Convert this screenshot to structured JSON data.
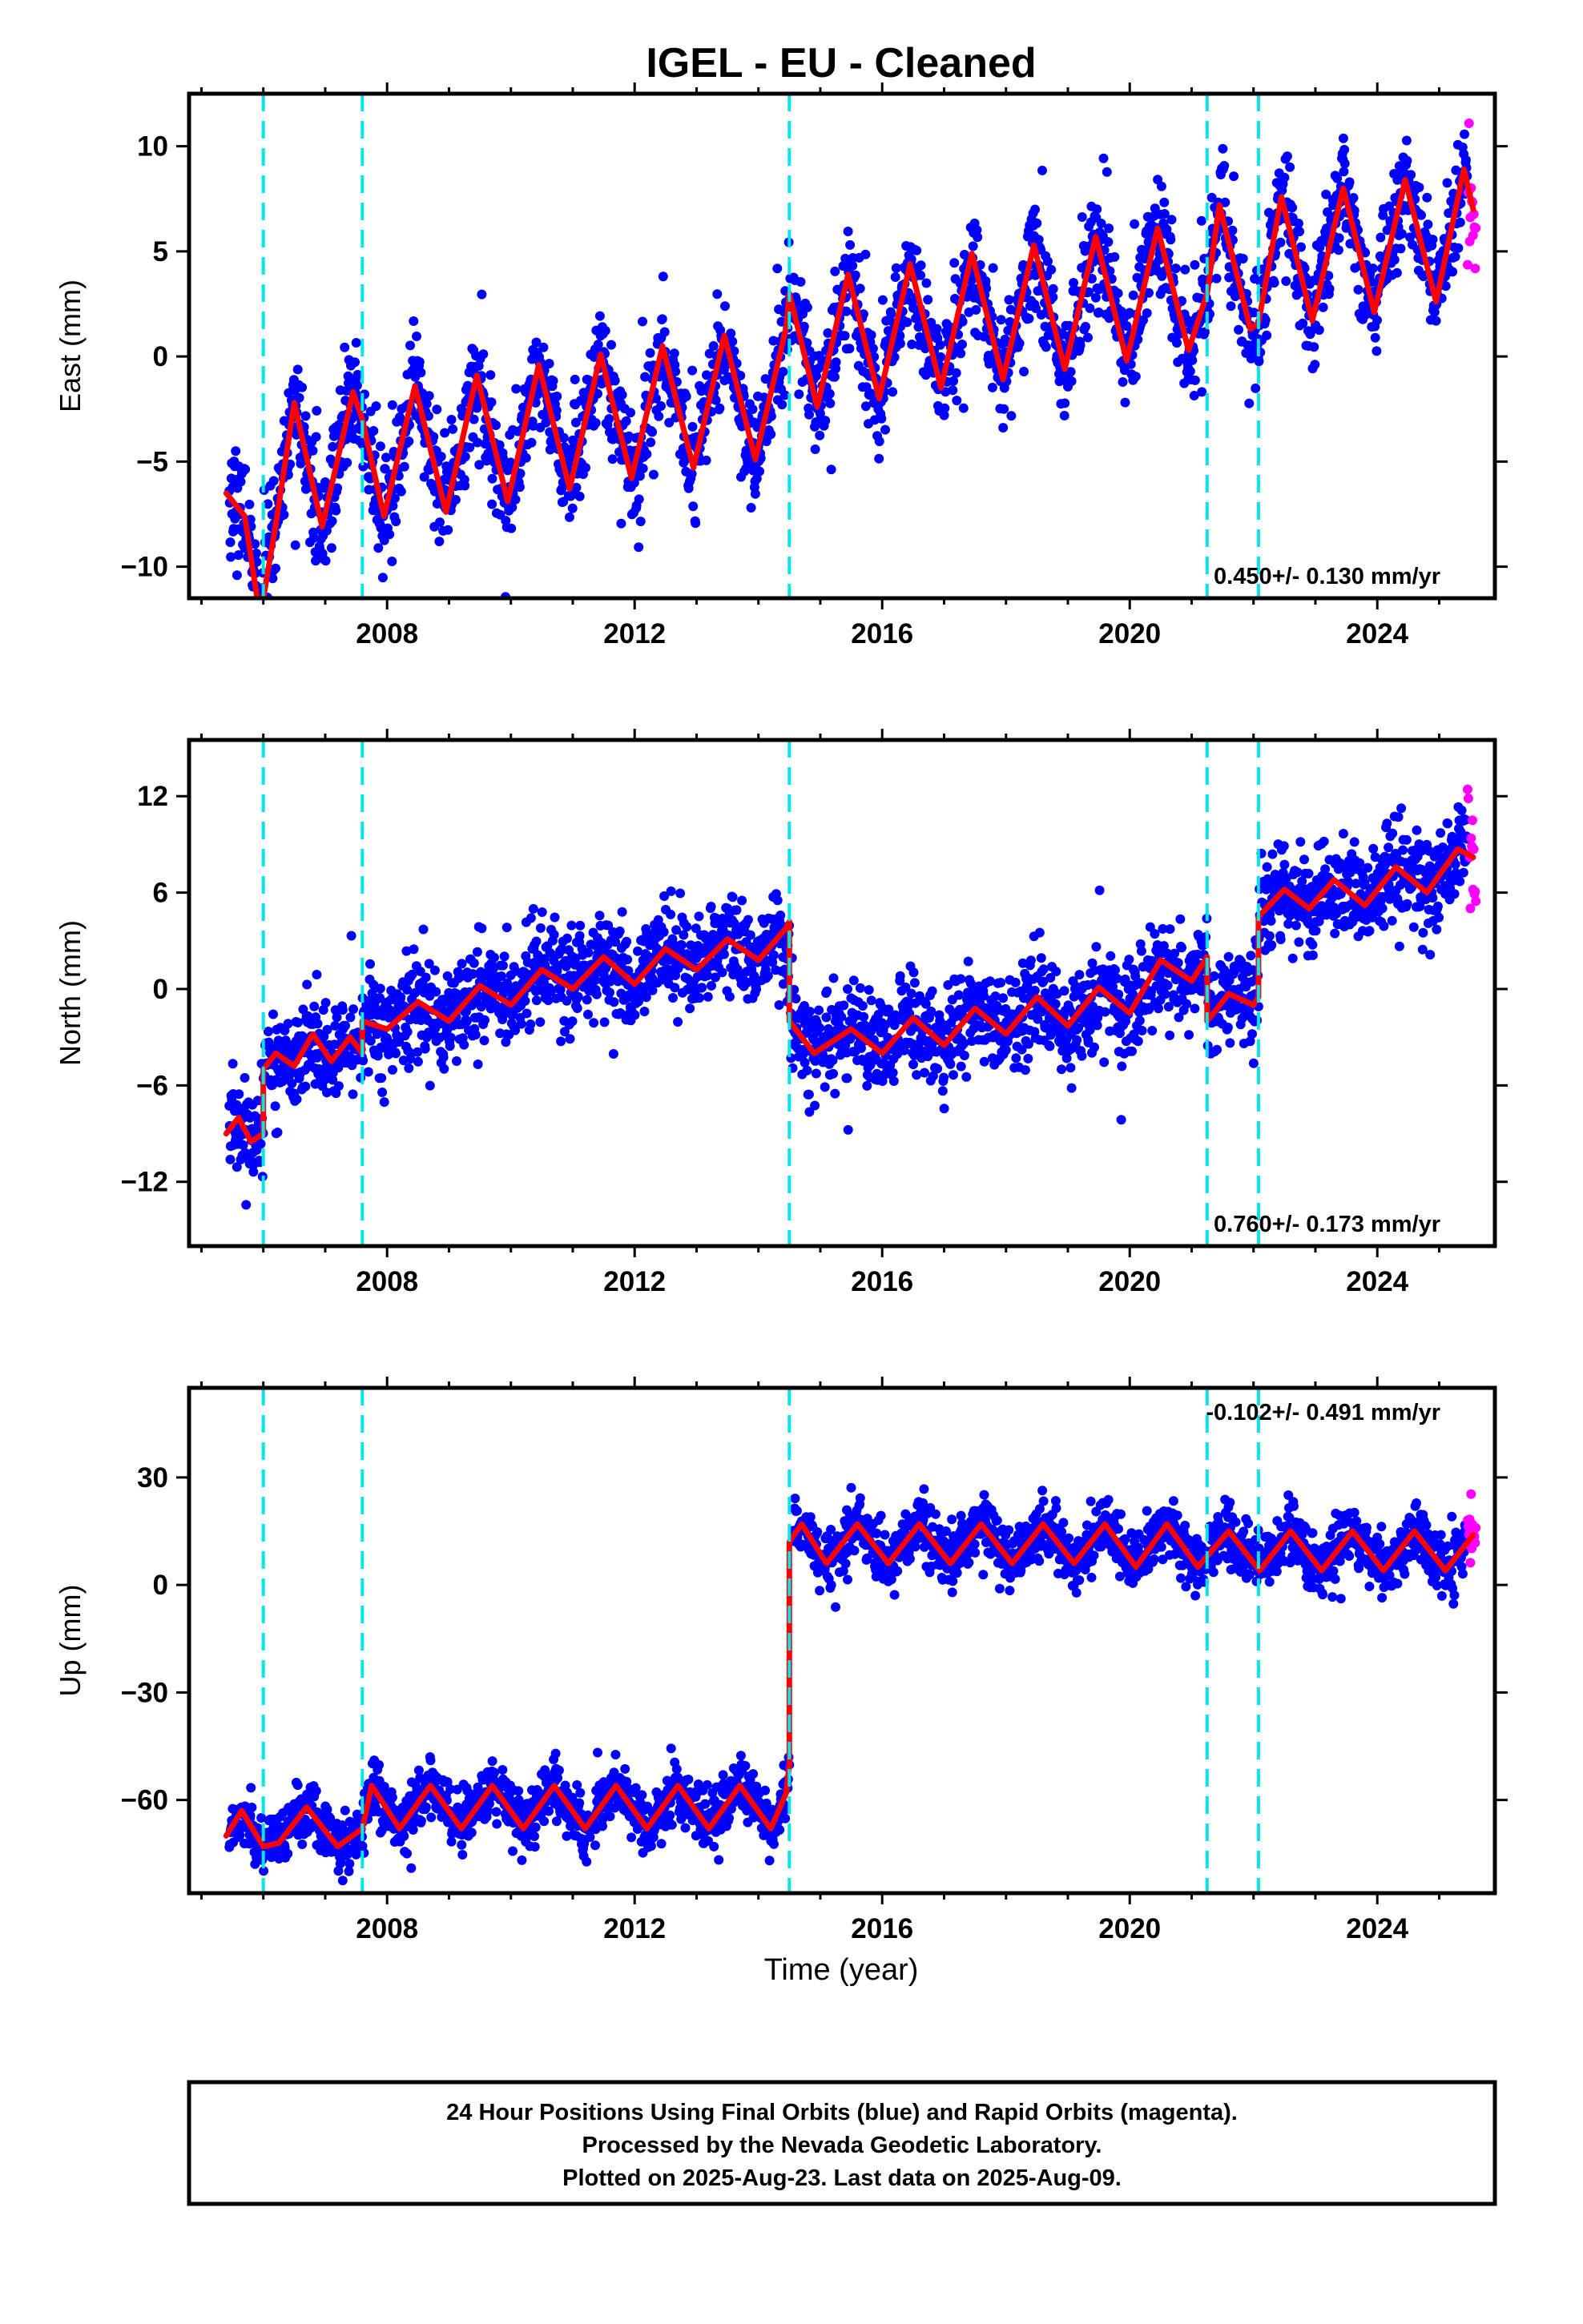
{
  "title": "IGEL  - EU - Cleaned",
  "xlabel": "Time (year)",
  "footer": {
    "lines": [
      "24 Hour Positions Using Final Orbits (blue) and Rapid Orbits (magenta).",
      "Processed by the Nevada Geodetic Laboratory.",
      "Plotted on 2025-Aug-23. Last data on 2025-Aug-09."
    ]
  },
  "colors": {
    "final_orbits": "#0000ff",
    "rapid_orbits": "#ff00ff",
    "model": "#ff0000",
    "steps": "#00e5ee"
  },
  "chart_data": [
    {
      "type": "scatter",
      "panel": "east",
      "ylabel": "East (mm)",
      "xlim": [
        2004.8,
        2025.9
      ],
      "ylim": [
        -11.5,
        12.5
      ],
      "x_ticks": [
        2008,
        2012,
        2016,
        2020,
        2024
      ],
      "y_ticks": [
        -10,
        -5,
        0,
        5,
        10
      ],
      "y_tick_labels": [
        "−10",
        "−5",
        "0",
        "5",
        "10"
      ],
      "rate_label": "0.450+/- 0.130 mm/yr",
      "rate_label_position": "bottom-right",
      "step_epochs": [
        2006.0,
        2007.6,
        2014.5,
        2021.25,
        2022.08
      ],
      "series": [
        {
          "kind": "model",
          "x": [
            2005.4,
            2005.7,
            2005.9,
            2006.0,
            2006.2,
            2006.5,
            2006.95,
            2007.45,
            2007.6,
            2007.95,
            2008.45,
            2008.95,
            2009.45,
            2009.95,
            2010.45,
            2010.95,
            2011.45,
            2011.95,
            2012.45,
            2012.95,
            2013.45,
            2013.95,
            2014.45,
            2014.5,
            2014.95,
            2015.45,
            2015.95,
            2016.45,
            2016.95,
            2017.45,
            2017.95,
            2018.45,
            2018.95,
            2019.45,
            2019.95,
            2020.45,
            2020.95,
            2021.25,
            2021.45,
            2021.95,
            2022.08,
            2022.45,
            2022.95,
            2023.45,
            2023.95,
            2024.45,
            2024.95,
            2025.4,
            2025.55
          ],
          "y": [
            -6.5,
            -7.6,
            -11.5,
            -11.5,
            -8.0,
            -2.2,
            -8.1,
            -1.7,
            -3.0,
            -7.6,
            -1.4,
            -7.4,
            -0.9,
            -6.9,
            -0.4,
            -6.3,
            0.1,
            -5.8,
            0.5,
            -5.3,
            1.0,
            -4.9,
            1.4,
            3.0,
            -2.4,
            3.9,
            -2.0,
            4.4,
            -1.5,
            4.9,
            -1.1,
            5.3,
            -0.6,
            5.7,
            -0.2,
            6.1,
            0.3,
            3.0,
            7.2,
            1.3,
            1.6,
            7.6,
            1.7,
            8.0,
            2.1,
            8.4,
            2.6,
            8.9,
            7.0
          ]
        }
      ]
    },
    {
      "type": "scatter",
      "panel": "north",
      "ylabel": "North (mm)",
      "xlim": [
        2004.8,
        2025.9
      ],
      "ylim": [
        -16,
        15.5
      ],
      "x_ticks": [
        2008,
        2012,
        2016,
        2020,
        2024
      ],
      "y_ticks": [
        -12,
        -6,
        0,
        6,
        12
      ],
      "y_tick_labels": [
        "−12",
        "−6",
        "0",
        "6",
        "12"
      ],
      "rate_label": "0.760+/- 0.173 mm/yr",
      "rate_label_position": "bottom-right",
      "step_epochs": [
        2006.0,
        2007.6,
        2014.5,
        2021.25,
        2022.08
      ],
      "series": [
        {
          "kind": "model",
          "x": [
            2005.4,
            2005.6,
            2005.8,
            2006.0,
            2006.0,
            2006.2,
            2006.5,
            2006.8,
            2007.1,
            2007.4,
            2007.6,
            2007.6,
            2008.0,
            2008.5,
            2009.0,
            2009.5,
            2010.0,
            2010.5,
            2011.0,
            2011.5,
            2012.0,
            2012.5,
            2013.0,
            2013.5,
            2014.0,
            2014.45,
            2014.5,
            2014.5,
            2014.9,
            2015.5,
            2016.0,
            2016.5,
            2017.0,
            2017.5,
            2018.0,
            2018.5,
            2019.0,
            2019.5,
            2020.0,
            2020.5,
            2021.0,
            2021.25,
            2021.25,
            2021.6,
            2022.0,
            2022.08,
            2022.08,
            2022.5,
            2022.9,
            2023.3,
            2023.8,
            2024.3,
            2024.8,
            2025.3,
            2025.55
          ],
          "y": [
            -9.0,
            -8.0,
            -9.5,
            -9.0,
            -5.0,
            -4.0,
            -4.8,
            -2.8,
            -4.5,
            -3.0,
            -4.0,
            -2.0,
            -2.5,
            -0.8,
            -2.0,
            0.2,
            -1.0,
            1.2,
            0.0,
            2.0,
            0.3,
            2.5,
            1.2,
            3.1,
            1.8,
            3.8,
            4.2,
            -2.0,
            -4.0,
            -2.5,
            -4.0,
            -1.8,
            -3.5,
            -1.2,
            -2.8,
            -0.5,
            -2.3,
            0.1,
            -1.5,
            1.8,
            0.5,
            2.0,
            -2.0,
            -0.3,
            -1.0,
            -0.5,
            4.5,
            6.2,
            5.0,
            6.8,
            5.2,
            7.6,
            6.0,
            8.7,
            8.2
          ]
        }
      ]
    },
    {
      "type": "scatter",
      "panel": "up",
      "ylabel": "Up (mm)",
      "xlabel": "Time (year)",
      "xlim": [
        2004.8,
        2025.9
      ],
      "ylim": [
        -86,
        55
      ],
      "x_ticks": [
        2008,
        2012,
        2016,
        2020,
        2024
      ],
      "y_ticks": [
        -60,
        -30,
        0,
        30
      ],
      "y_tick_labels": [
        "−60",
        "−30",
        "0",
        "30"
      ],
      "rate_label": "-0.102+/- 0.491 mm/yr",
      "rate_label_position": "top-right",
      "step_epochs": [
        2006.0,
        2007.6,
        2014.5,
        2021.25,
        2022.08
      ],
      "series": [
        {
          "kind": "model",
          "x": [
            2005.4,
            2005.65,
            2006.0,
            2006.25,
            2006.7,
            2007.2,
            2007.6,
            2007.75,
            2008.2,
            2008.7,
            2009.2,
            2009.7,
            2010.2,
            2010.7,
            2011.2,
            2011.7,
            2012.2,
            2012.7,
            2013.2,
            2013.7,
            2014.2,
            2014.45,
            2014.5,
            2014.5,
            2014.7,
            2015.1,
            2015.6,
            2016.1,
            2016.6,
            2017.1,
            2017.6,
            2018.1,
            2018.6,
            2019.1,
            2019.6,
            2020.1,
            2020.6,
            2021.1,
            2021.25,
            2021.6,
            2022.1,
            2022.6,
            2023.1,
            2023.6,
            2024.1,
            2024.6,
            2025.1,
            2025.55
          ],
          "y": [
            -70,
            -63,
            -73,
            -72,
            -62,
            -73,
            -68,
            -56,
            -68,
            -56,
            -68,
            -56,
            -68,
            -56,
            -68,
            -56,
            -68,
            -56,
            -68,
            -56,
            -68,
            -58,
            -50,
            12,
            17,
            6,
            17,
            6,
            17,
            6,
            17,
            6,
            17,
            6,
            17,
            5,
            17,
            5,
            8,
            15,
            4,
            15,
            4,
            15,
            4,
            15,
            4,
            14
          ]
        }
      ]
    }
  ]
}
